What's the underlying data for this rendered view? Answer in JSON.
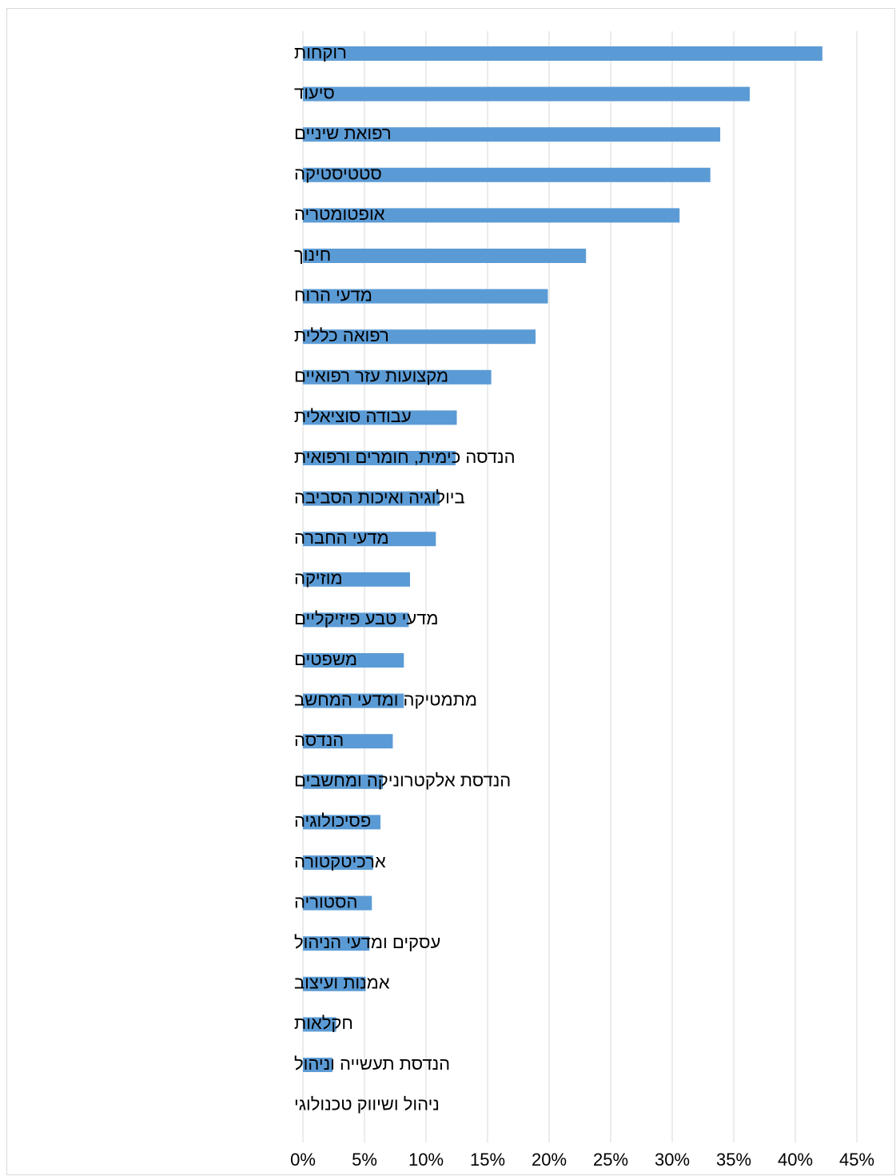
{
  "chart_data": {
    "type": "bar",
    "orientation": "horizontal",
    "categories": [
      "רוקחות",
      "סיעוד",
      "רפואת שיניים",
      "סטטיסטיקה",
      "אופטומטריה",
      "חינוך",
      "מדעי הרוח",
      "רפואה כללית",
      "מקצועות עזר רפואיים",
      "עבודה סוציאלית",
      "הנדסה כימית, חומרים ורפואית",
      "ביולוגיה ואיכות הסביבה",
      "מדעי החברה",
      "מוזיקה",
      "מדעי טבע פיזיקליים",
      "משפטים",
      "מתמטיקה ומדעי המחשב",
      "הנדסה",
      "הנדסת אלקטרוניקה ומחשבים",
      "פסיכולוגיה",
      "ארכיטקטורה",
      "הסטוריה",
      "עסקים ומדעי הניהול",
      "אמנות ועיצוב",
      "חקלאות",
      "הנדסת תעשייה וניהול",
      "ניהול ושיווק טכנולוגי"
    ],
    "values": [
      42.2,
      36.3,
      33.9,
      33.1,
      30.6,
      23.0,
      19.9,
      18.9,
      15.3,
      12.5,
      12.4,
      11.1,
      10.8,
      8.7,
      8.6,
      8.2,
      8.2,
      7.3,
      6.5,
      6.3,
      5.7,
      5.6,
      5.4,
      5.1,
      2.7,
      2.4,
      0
    ],
    "tick_labels": [
      "0%",
      "5%",
      "10%",
      "15%",
      "20%",
      "25%",
      "30%",
      "35%",
      "40%",
      "45%"
    ],
    "xlim": [
      0,
      45
    ],
    "grid": true,
    "colors": {
      "bar": "#5b9bd5",
      "grid": "#d9d9d9",
      "text": "#000000"
    }
  }
}
